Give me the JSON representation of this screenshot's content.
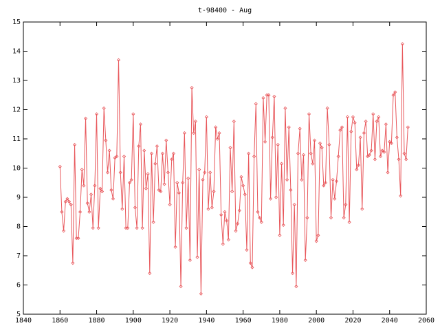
{
  "chart_data": {
    "type": "line",
    "title": "t-98400 - Aug",
    "x": [
      1860,
      1861,
      1862,
      1863,
      1864,
      1865,
      1866,
      1867,
      1868,
      1869,
      1870,
      1871,
      1872,
      1873,
      1874,
      1875,
      1876,
      1877,
      1878,
      1879,
      1880,
      1881,
      1882,
      1883,
      1884,
      1885,
      1886,
      1887,
      1888,
      1889,
      1890,
      1891,
      1892,
      1893,
      1894,
      1895,
      1896,
      1897,
      1898,
      1899,
      1900,
      1901,
      1902,
      1903,
      1904,
      1905,
      1906,
      1907,
      1908,
      1909,
      1910,
      1911,
      1912,
      1913,
      1914,
      1915,
      1916,
      1917,
      1918,
      1919,
      1920,
      1921,
      1922,
      1923,
      1924,
      1925,
      1926,
      1927,
      1928,
      1929,
      1930,
      1931,
      1932,
      1933,
      1934,
      1935,
      1936,
      1937,
      1938,
      1939,
      1940,
      1941,
      1942,
      1943,
      1944,
      1945,
      1946,
      1947,
      1948,
      1949,
      1950,
      1951,
      1952,
      1953,
      1954,
      1955,
      1956,
      1957,
      1958,
      1959,
      1960,
      1961,
      1962,
      1963,
      1964,
      1965,
      1966,
      1967,
      1968,
      1969,
      1970,
      1971,
      1972,
      1973,
      1974,
      1975,
      1976,
      1977,
      1978,
      1979,
      1980,
      1981,
      1982,
      1983,
      1984,
      1985,
      1986,
      1987,
      1988,
      1989,
      1990,
      1991,
      1992,
      1993,
      1994,
      1995,
      1996,
      1997,
      1998,
      1999,
      2000,
      2001,
      2002,
      2003,
      2004,
      2005,
      2006,
      2007,
      2008,
      2009,
      2010,
      2011,
      2012,
      2013,
      2014,
      2015,
      2016,
      2017,
      2018,
      2019,
      2020,
      2021,
      2022,
      2023,
      2024,
      2025,
      2026,
      2027,
      2028,
      2029,
      2030,
      2031,
      2032,
      2033,
      2034,
      2035,
      2036,
      2037,
      2038,
      2039,
      2040,
      2041,
      2042,
      2043,
      2044,
      2045,
      2046,
      2047,
      2048,
      2049,
      2050
    ],
    "series": [
      {
        "color": "#e8565a",
        "values": [
          10.05,
          8.5,
          7.85,
          8.85,
          8.95,
          8.85,
          8.75,
          6.75,
          10.8,
          7.6,
          7.6,
          8.5,
          9.95,
          9.4,
          11.7,
          8.8,
          8.5,
          9.1,
          7.95,
          9.4,
          11.85,
          7.95,
          9.3,
          9.2,
          12.05,
          10.95,
          9.85,
          10.6,
          9.25,
          8.95,
          10.35,
          10.4,
          13.7,
          9.85,
          8.6,
          10.4,
          7.95,
          7.95,
          9.5,
          9.6,
          11.85,
          8.65,
          7.95,
          10.75,
          11.5,
          7.95,
          10.6,
          9.3,
          9.8,
          6.4,
          10.5,
          8.15,
          10.15,
          10.75,
          9.25,
          9.2,
          10.5,
          9.45,
          10.95,
          9.85,
          8.75,
          10.3,
          10.5,
          7.3,
          9.5,
          9.15,
          5.95,
          9.5,
          11.2,
          7.95,
          9.65,
          6.85,
          12.75,
          11.2,
          11.6,
          6.95,
          9.95,
          5.7,
          9.6,
          9.85,
          11.75,
          8.6,
          9.85,
          8.65,
          9.2,
          11.4,
          11.0,
          11.2,
          8.4,
          7.4,
          8.5,
          8.2,
          7.55,
          10.7,
          9.2,
          11.6,
          7.85,
          8.1,
          8.55,
          9.7,
          9.4,
          9.1,
          7.2,
          10.5,
          6.75,
          6.6,
          10.4,
          12.2,
          8.5,
          8.3,
          8.15,
          12.4,
          10.9,
          12.5,
          12.5,
          8.95,
          11.05,
          12.45,
          9.0,
          10.8,
          7.7,
          10.15,
          8.05,
          12.05,
          9.6,
          11.4,
          9.25,
          6.4,
          8.75,
          5.95,
          10.5,
          11.35,
          9.6,
          10.45,
          6.85,
          8.3,
          11.85,
          10.5,
          10.15,
          10.95,
          7.5,
          7.7,
          10.85,
          10.7,
          9.4,
          9.5,
          12.05,
          10.8,
          8.3,
          9.6,
          8.95,
          9.55,
          10.4,
          11.3,
          11.4,
          8.3,
          8.75,
          11.75,
          8.15,
          11.25,
          11.75,
          11.55,
          9.95,
          10.1,
          11.05,
          8.6,
          11.2,
          11.6,
          10.4,
          10.45,
          10.6,
          11.85,
          10.3,
          11.6,
          11.75,
          10.4,
          10.6,
          10.55,
          11.5,
          9.85,
          10.9,
          10.85,
          12.5,
          12.6,
          11.05,
          10.3,
          9.05,
          14.25,
          10.5,
          10.3,
          11.4
        ]
      }
    ],
    "xlim": [
      1840,
      2060
    ],
    "xticks": [
      1840,
      1860,
      1880,
      1900,
      1920,
      1940,
      1960,
      1980,
      2000,
      2020,
      2040,
      2060
    ],
    "ylim": [
      5,
      15
    ],
    "yticks": [
      5,
      6,
      7,
      8,
      9,
      10,
      11,
      12,
      13,
      14,
      15
    ],
    "grid": false
  }
}
